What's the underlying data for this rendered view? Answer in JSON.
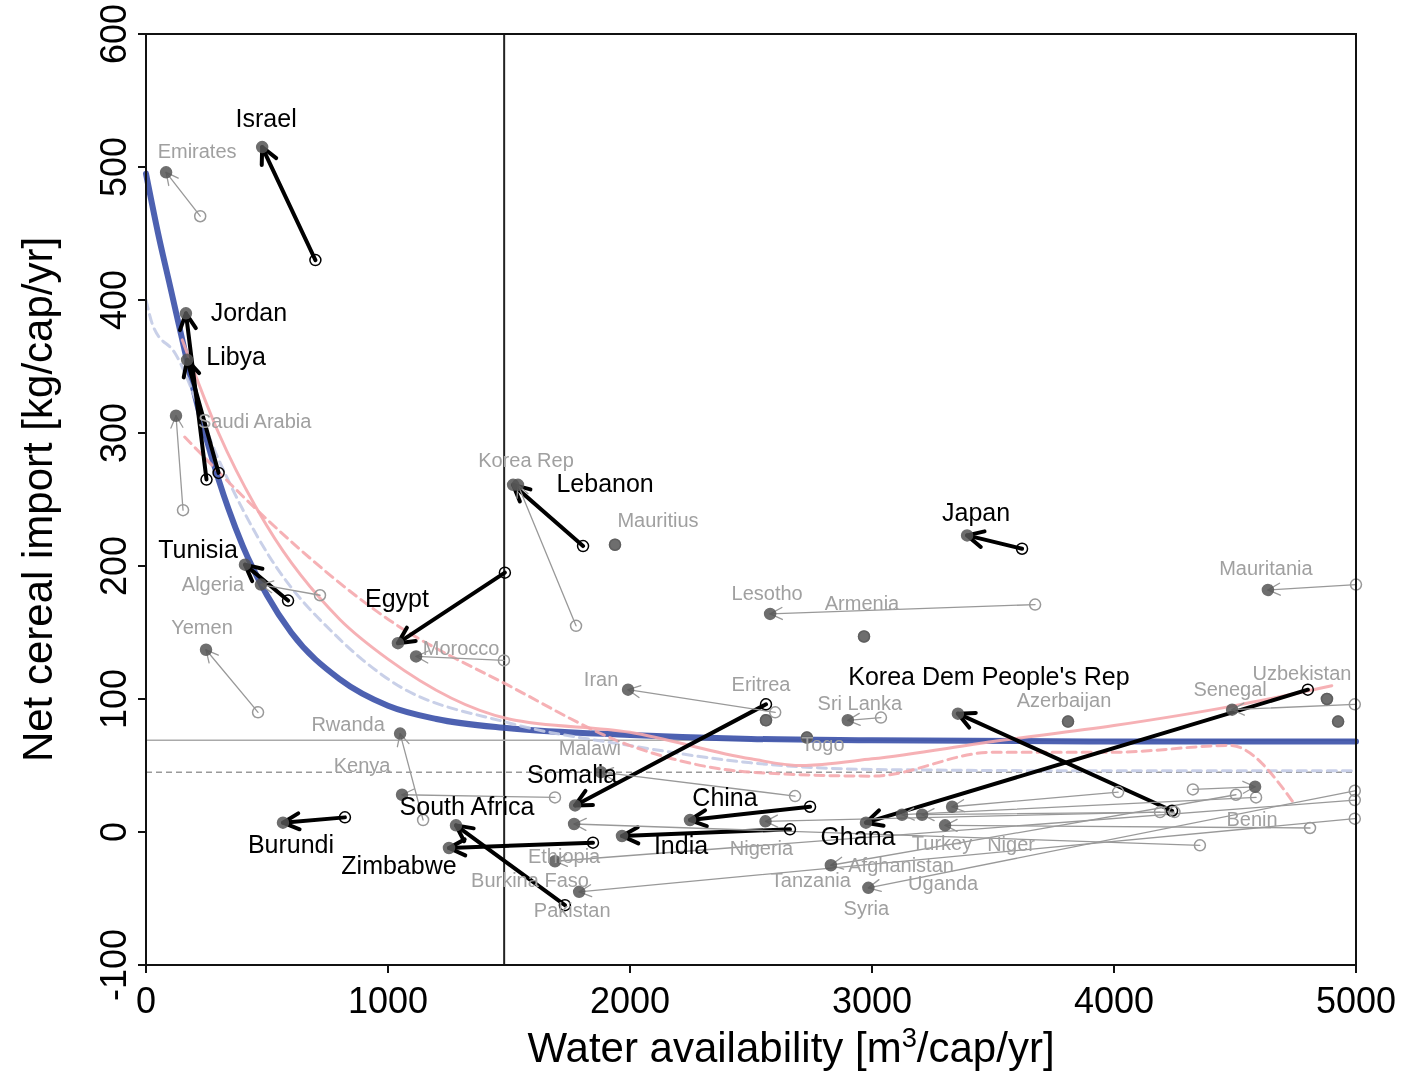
{
  "chart_data": {
    "type": "scatter",
    "xlabel": "Water availability  [m$^{3}$/cap/yr]",
    "ylabel": "Net cereal import [kg/cap/yr]",
    "xlim": [
      0,
      5000
    ],
    "xticks": [
      0,
      1000,
      2000,
      3000,
      4000,
      5000
    ],
    "ylim": [
      -100,
      600
    ],
    "yticks": [
      -100,
      0,
      100,
      200,
      300,
      400,
      500,
      600
    ],
    "ref_lines": [
      {
        "axis": "x",
        "value": 1480,
        "color": "#222222",
        "line_style": "solid"
      },
      {
        "axis": "y",
        "value": 69,
        "color": "#aaaaaa",
        "line_style": "solid"
      },
      {
        "axis": "y",
        "value": 45,
        "color": "#999999",
        "line_style": "dashed"
      }
    ],
    "series": [
      {
        "type": "line",
        "color": "#3a50a8",
        "line_style": "solid",
        "marker": "none",
        "x": [
          0,
          50,
          100,
          150,
          200,
          300,
          400,
          500,
          600,
          800,
          1000,
          1200,
          1500,
          2000,
          2500,
          3000,
          4000,
          5000
        ],
        "values": [
          495,
          450,
          410,
          370,
          330,
          265,
          215,
          178,
          150,
          115,
          95,
          85,
          78,
          73,
          70,
          69,
          68,
          68
        ]
      },
      {
        "type": "line",
        "color": "#c3cbe6",
        "line_style": "dashed",
        "marker": "none",
        "x": [
          0,
          30,
          120,
          300,
          500,
          800,
          1000,
          1500,
          2000,
          2500,
          3000,
          4000,
          5000
        ],
        "values": [
          400,
          380,
          360,
          280,
          210,
          145,
          115,
          82,
          65,
          52,
          47,
          46,
          46
        ]
      },
      {
        "type": "line",
        "color": "#f5a9ad",
        "line_style": "solid",
        "marker": "none",
        "x": [
          150,
          300,
          500,
          800,
          1000,
          1500,
          2000,
          2500,
          2700,
          3000,
          3500,
          4000,
          4500,
          4900
        ],
        "values": [
          370,
          300,
          230,
          160,
          130,
          85,
          75,
          55,
          50,
          55,
          68,
          80,
          95,
          110
        ]
      },
      {
        "type": "line",
        "color": "#f5a9ad",
        "line_style": "dashed",
        "marker": "none",
        "x": [
          160,
          500,
          1000,
          1500,
          2000,
          2500,
          3000,
          3500,
          4000,
          4480,
          4750
        ],
        "values": [
          297,
          235,
          160,
          110,
          65,
          45,
          42,
          60,
          60,
          65,
          20
        ]
      },
      {
        "color": "#000000",
        "marker": "circle",
        "x": [
          700,
          250,
          300,
          587,
          1483,
          1806,
          3620,
          4240,
          4801,
          2744,
          2661,
          2562,
          1731,
          1847,
          822
        ],
        "values": [
          430,
          265,
          270,
          174,
          195,
          215,
          213,
          16,
          107,
          19,
          2,
          96,
          -55,
          -8,
          11
        ]
      },
      {
        "color": "#555555",
        "marker": "circle",
        "x": [
          480,
          165,
          170,
          409,
          1041,
          1517,
          3393,
          3355,
          2975,
          2248,
          1967,
          1773,
          1281,
          1252,
          566
        ],
        "values": [
          515,
          390,
          355,
          201,
          142,
          261,
          223,
          89,
          7,
          9,
          -3,
          20,
          5,
          -12,
          7
        ],
        "value_labels": [
          "Israel",
          "Jordan",
          "Libya",
          "Tunisia",
          "Egypt",
          "Lebanon",
          "Japan",
          "Korea Dem People's Rep",
          "Ghana",
          "China",
          "India",
          "Somalia",
          "South Africa",
          "Zimbabwe",
          "Burundi"
        ]
      },
      {
        "color": "#999999",
        "marker": "circle",
        "x": [
          224,
          153,
          719,
          463,
          1479,
          1145,
          1690,
          1777,
          1938,
          3674,
          2967,
          2600,
          2562,
          3037,
          2731,
          3810,
          5000,
          4995,
          4880,
          4326,
          2682,
          4190,
          4587,
          4810,
          4017,
          4504,
          4250,
          4995,
          4355,
          4995,
          4995,
          4926
        ],
        "values": [
          463,
          242,
          178,
          90,
          129,
          9,
          26,
          155,
          216,
          171,
          147,
          90,
          84,
          86,
          71,
          83,
          186,
          96,
          100,
          32,
          27,
          15,
          26,
          3,
          30,
          28,
          15,
          31,
          -10,
          24,
          10,
          83
        ]
      },
      {
        "color": "#555555",
        "marker": "circle",
        "x": [
          83,
          124,
          475,
          248,
          1116,
          1050,
          1058,
          1537,
          1938,
          2579,
          2967,
          1992,
          2562,
          2900,
          2731,
          3810,
          4636,
          4488,
          4880,
          4583,
          1880,
          2560,
          3124,
          3302,
          3331,
          2830,
          3207,
          2985,
          1769,
          1690,
          1790,
          4926
        ],
        "values": [
          496,
          313,
          186,
          137,
          132,
          74,
          28,
          261,
          216,
          164,
          147,
          107,
          84,
          84,
          71,
          83,
          182,
          92,
          100,
          34,
          45,
          8,
          13,
          5,
          19,
          -25,
          13,
          -42,
          6,
          -22,
          -45,
          83
        ],
        "value_labels": [
          "Emirates",
          "Saudi Arabia",
          "Algeria",
          "Yemen",
          "Morocco",
          "Rwanda",
          "Kenya",
          "Korea Rep",
          "Mauritius",
          "Lesotho",
          "Armenia",
          "Iran",
          "Eritrea",
          "Sri Lanka",
          "Togo",
          "Azerbaijan",
          "Mauritania",
          "Senegal",
          "Uzbekistan",
          "Benin",
          "Malawi",
          "Nigeria",
          "Turkey",
          "Niger",
          "Afghanistan",
          "Tanzania",
          "Uganda",
          "Syria",
          "Ethiopia",
          "Burkina Faso",
          "Pakistan",
          null
        ]
      }
    ]
  }
}
